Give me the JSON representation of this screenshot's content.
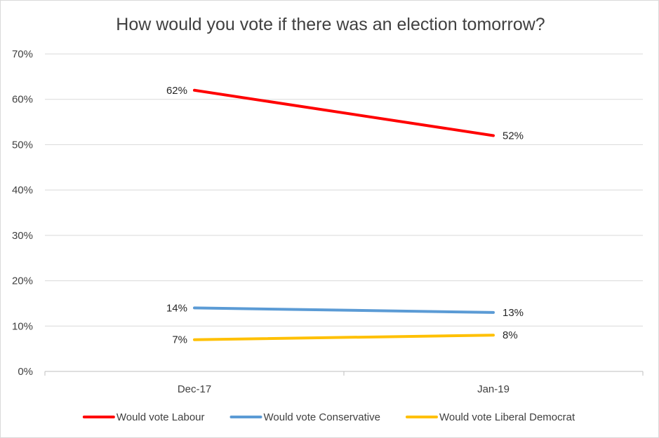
{
  "chart_data": {
    "type": "line",
    "title": "How would you vote if there was an election tomorrow?",
    "categories": [
      "Dec-17",
      "Jan-19"
    ],
    "ylim": [
      0,
      70
    ],
    "y_ticks": [
      "0%",
      "10%",
      "20%",
      "30%",
      "40%",
      "50%",
      "60%",
      "70%"
    ],
    "y_tick_values": [
      0,
      10,
      20,
      30,
      40,
      50,
      60,
      70
    ],
    "grid": true,
    "legend_position": "bottom",
    "series": [
      {
        "name": "Would vote Labour",
        "values": [
          62,
          52
        ],
        "labels": [
          "62%",
          "52%"
        ],
        "color": "#ff0000"
      },
      {
        "name": "Would vote Conservative",
        "values": [
          14,
          13
        ],
        "labels": [
          "14%",
          "13%"
        ],
        "color": "#5b9bd5"
      },
      {
        "name": "Would vote Liberal Democrat",
        "values": [
          7,
          8
        ],
        "labels": [
          "7%",
          "8%"
        ],
        "color": "#ffc000"
      }
    ]
  }
}
